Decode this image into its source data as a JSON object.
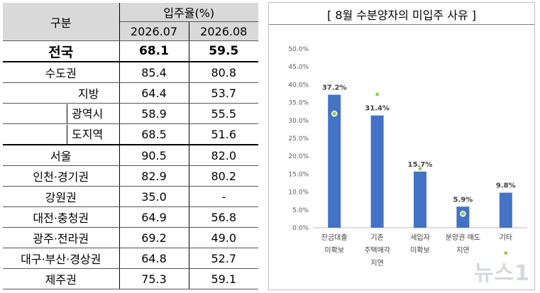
{
  "table": {
    "header": {
      "col_group": "구분",
      "col_rate": "입주율(%)",
      "col_jul": "2026.07",
      "col_aug": "2026.08"
    },
    "rows": [
      {
        "region": "전국",
        "jul": "68.1",
        "aug": "59.5"
      },
      {
        "region": "수도권",
        "jul": "85.4",
        "aug": "80.8"
      },
      {
        "region": "지방",
        "jul": "64.4",
        "aug": "53.7"
      },
      {
        "region": "광역시",
        "jul": "58.9",
        "aug": "55.5"
      },
      {
        "region": "도지역",
        "jul": "68.5",
        "aug": "51.6"
      },
      {
        "region": "서울",
        "jul": "90.5",
        "aug": "82.0"
      },
      {
        "region": "인천·경기권",
        "jul": "82.9",
        "aug": "80.2"
      },
      {
        "region": "강원권",
        "jul": "35.0",
        "aug": "-"
      },
      {
        "region": "대전·충청권",
        "jul": "64.9",
        "aug": "56.8"
      },
      {
        "region": "광주·전라권",
        "jul": "69.2",
        "aug": "49.0"
      },
      {
        "region": "대구·부산·경상권",
        "jul": "64.8",
        "aug": "52.7"
      },
      {
        "region": "제주권",
        "jul": "75.3",
        "aug": "59.1"
      }
    ]
  },
  "chart_data": {
    "type": "bar",
    "title": "[ 8월 수분양자의 미입주 사유 ]",
    "categories": [
      [
        "잔금대출",
        "미확보"
      ],
      [
        "기존",
        "주택매각",
        "지연"
      ],
      [
        "세입자",
        "미확보"
      ],
      [
        "분양권 매도",
        "지연"
      ],
      [
        "기타"
      ]
    ],
    "series": [
      {
        "values": [
          37.2,
          31.4,
          15.7,
          5.9,
          9.8
        ],
        "labels": [
          "37.2%",
          "31.4%",
          "15.7%",
          "5.9%",
          "9.8%"
        ]
      }
    ],
    "previous_markers": [
      31.9,
      37.3,
      16.5,
      3.9,
      -7.1
    ],
    "yticks": [
      "0.0%",
      "5.0%",
      "10.0%",
      "15.0%",
      "20.0%",
      "25.0%",
      "30.0%",
      "35.0%",
      "40.0%",
      "45.0%",
      "50.0%"
    ],
    "ylim": [
      0,
      50
    ],
    "xlabel": "",
    "ylabel": "",
    "colors": {
      "bar": "#4472c4",
      "marker": "#92d050"
    }
  },
  "watermark": "뉴스1"
}
